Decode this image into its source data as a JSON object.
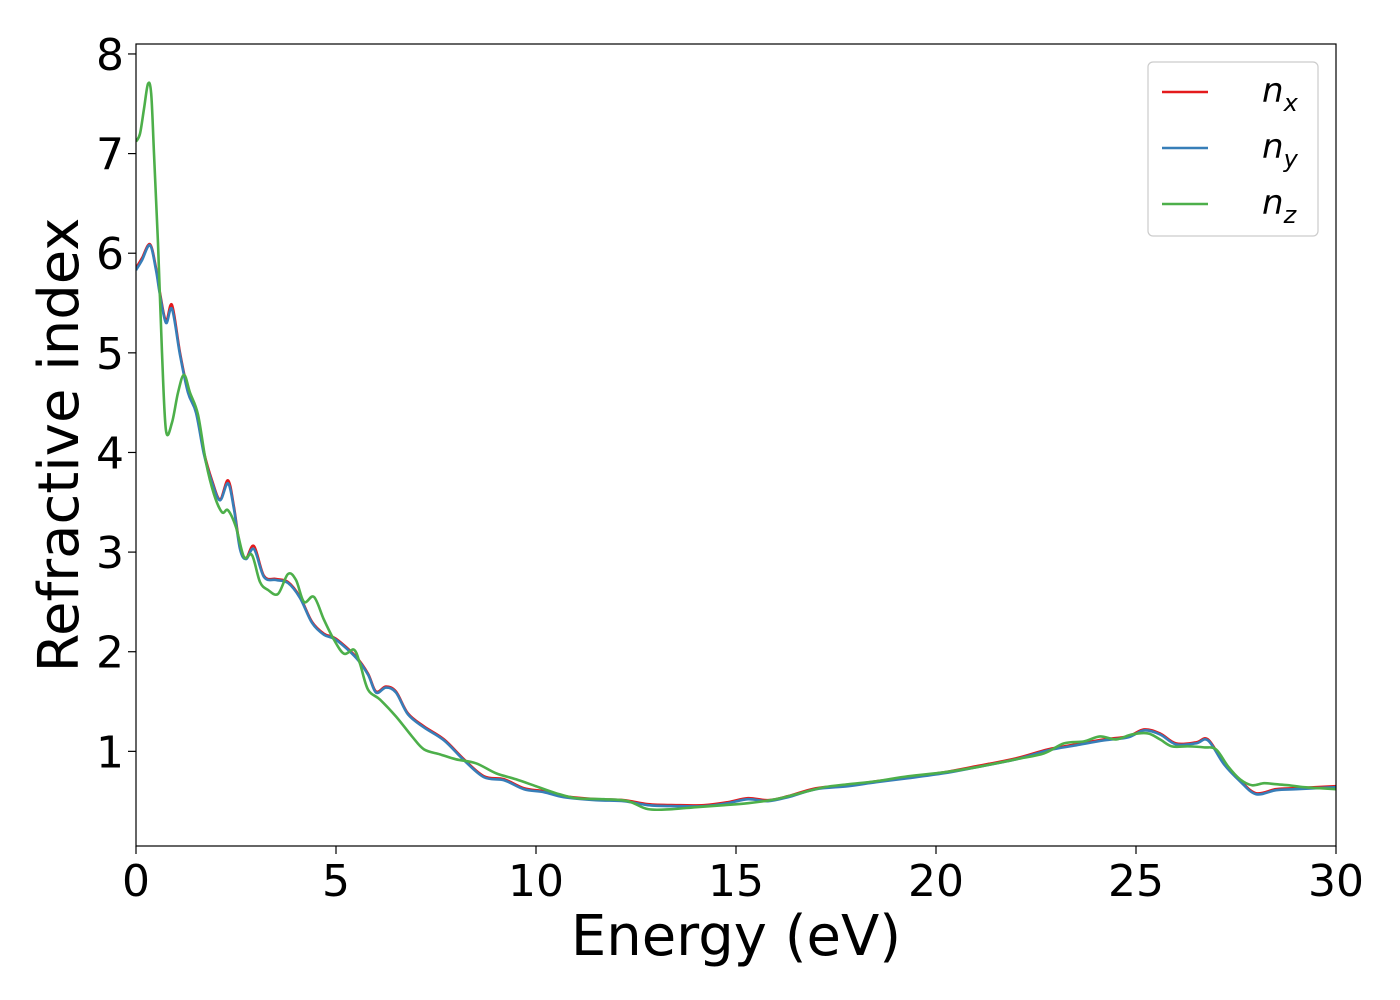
{
  "chart_data": {
    "type": "line",
    "title": "",
    "xlabel": "Energy (eV)",
    "ylabel": "Refractive index",
    "xlim": [
      0,
      30
    ],
    "ylim": [
      0.05,
      8.1
    ],
    "xticks": [
      0,
      5,
      10,
      15,
      20,
      25,
      30
    ],
    "yticks": [
      1,
      2,
      3,
      4,
      5,
      6,
      7,
      8
    ],
    "grid": false,
    "legend_position": "top-right",
    "series": [
      {
        "name": "n_x",
        "legend_base": "n",
        "legend_sub": "x",
        "color": "#e41a1c",
        "x": [
          0,
          0.15,
          0.35,
          0.5,
          0.6,
          0.75,
          0.9,
          1.1,
          1.3,
          1.5,
          1.7,
          1.9,
          2.1,
          2.3,
          2.45,
          2.6,
          2.75,
          2.95,
          3.2,
          3.5,
          3.8,
          4.1,
          4.4,
          4.7,
          5.0,
          5.5,
          5.8,
          6.0,
          6.25,
          6.5,
          6.8,
          7.2,
          7.7,
          8.2,
          8.7,
          9.2,
          9.7,
          10.2,
          10.7,
          11.5,
          12.2,
          12.8,
          13.5,
          14.2,
          14.8,
          15.3,
          15.8,
          16.3,
          17.0,
          17.8,
          18.5,
          19.3,
          20.2,
          21.0,
          22.0,
          22.8,
          23.5,
          24.2,
          24.8,
          25.2,
          25.6,
          26.0,
          26.5,
          26.8,
          27.2,
          27.6,
          28.0,
          28.5,
          29.0,
          29.5,
          30.0
        ],
        "y": [
          5.85,
          5.95,
          6.09,
          5.85,
          5.6,
          5.32,
          5.48,
          5.0,
          4.62,
          4.42,
          4.0,
          3.72,
          3.53,
          3.72,
          3.45,
          3.05,
          2.94,
          3.06,
          2.76,
          2.73,
          2.7,
          2.55,
          2.3,
          2.18,
          2.13,
          1.95,
          1.78,
          1.6,
          1.65,
          1.6,
          1.38,
          1.25,
          1.12,
          0.92,
          0.75,
          0.72,
          0.63,
          0.6,
          0.55,
          0.52,
          0.51,
          0.47,
          0.46,
          0.46,
          0.49,
          0.53,
          0.51,
          0.55,
          0.63,
          0.66,
          0.7,
          0.74,
          0.79,
          0.85,
          0.93,
          1.02,
          1.07,
          1.12,
          1.15,
          1.22,
          1.18,
          1.08,
          1.09,
          1.12,
          0.88,
          0.71,
          0.58,
          0.62,
          0.63,
          0.64,
          0.65
        ]
      },
      {
        "name": "n_y",
        "legend_base": "n",
        "legend_sub": "y",
        "color": "#377eb8",
        "x": [
          0,
          0.15,
          0.35,
          0.5,
          0.6,
          0.75,
          0.9,
          1.1,
          1.3,
          1.5,
          1.7,
          1.9,
          2.1,
          2.3,
          2.45,
          2.6,
          2.75,
          2.95,
          3.2,
          3.5,
          3.8,
          4.1,
          4.4,
          4.7,
          5.0,
          5.5,
          5.8,
          6.0,
          6.25,
          6.5,
          6.8,
          7.2,
          7.7,
          8.2,
          8.7,
          9.2,
          9.7,
          10.2,
          10.7,
          11.5,
          12.2,
          12.8,
          13.5,
          14.2,
          14.8,
          15.3,
          15.8,
          16.3,
          17.0,
          17.8,
          18.5,
          19.3,
          20.2,
          21.0,
          22.0,
          22.8,
          23.5,
          24.2,
          24.8,
          25.2,
          25.6,
          26.0,
          26.5,
          26.8,
          27.2,
          27.6,
          28.0,
          28.5,
          29.0,
          29.5,
          30.0
        ],
        "y": [
          5.83,
          5.93,
          6.08,
          5.83,
          5.58,
          5.3,
          5.44,
          4.98,
          4.6,
          4.4,
          3.98,
          3.7,
          3.52,
          3.69,
          3.43,
          3.03,
          2.93,
          3.03,
          2.75,
          2.72,
          2.69,
          2.54,
          2.29,
          2.17,
          2.12,
          1.94,
          1.77,
          1.59,
          1.64,
          1.59,
          1.37,
          1.24,
          1.11,
          0.91,
          0.74,
          0.71,
          0.62,
          0.59,
          0.54,
          0.51,
          0.5,
          0.46,
          0.45,
          0.45,
          0.48,
          0.52,
          0.5,
          0.54,
          0.62,
          0.65,
          0.69,
          0.73,
          0.78,
          0.84,
          0.92,
          1.01,
          1.06,
          1.11,
          1.14,
          1.21,
          1.17,
          1.07,
          1.08,
          1.11,
          0.87,
          0.7,
          0.57,
          0.61,
          0.62,
          0.63,
          0.64
        ]
      },
      {
        "name": "n_z",
        "legend_base": "n",
        "legend_sub": "z",
        "color": "#4daf4a",
        "x": [
          0,
          0.1,
          0.2,
          0.3,
          0.38,
          0.45,
          0.55,
          0.65,
          0.75,
          0.9,
          1.05,
          1.2,
          1.35,
          1.55,
          1.75,
          1.95,
          2.15,
          2.3,
          2.5,
          2.7,
          2.9,
          3.1,
          3.3,
          3.55,
          3.8,
          4.0,
          4.2,
          4.45,
          4.7,
          4.95,
          5.2,
          5.45,
          5.6,
          5.8,
          6.1,
          6.5,
          6.9,
          7.2,
          7.6,
          8.0,
          8.5,
          9.0,
          9.5,
          10.0,
          10.5,
          11.0,
          11.7,
          12.3,
          12.8,
          13.4,
          14.0,
          14.7,
          15.3,
          16.0,
          16.6,
          17.2,
          17.8,
          18.5,
          19.3,
          20.2,
          21.0,
          22.0,
          22.7,
          23.2,
          23.7,
          24.1,
          24.5,
          24.9,
          25.3,
          25.6,
          25.9,
          26.3,
          26.7,
          27.0,
          27.3,
          27.6,
          27.9,
          28.2,
          28.5,
          28.8,
          29.2,
          29.6,
          30.0
        ],
        "y": [
          7.12,
          7.2,
          7.45,
          7.7,
          7.6,
          7.0,
          6.1,
          5.0,
          4.22,
          4.3,
          4.6,
          4.78,
          4.6,
          4.38,
          3.9,
          3.58,
          3.4,
          3.42,
          3.25,
          2.95,
          2.97,
          2.7,
          2.62,
          2.58,
          2.78,
          2.72,
          2.5,
          2.55,
          2.32,
          2.12,
          1.98,
          2.02,
          1.88,
          1.62,
          1.52,
          1.35,
          1.15,
          1.02,
          0.97,
          0.92,
          0.88,
          0.78,
          0.72,
          0.65,
          0.58,
          0.53,
          0.52,
          0.5,
          0.42,
          0.42,
          0.44,
          0.46,
          0.48,
          0.52,
          0.58,
          0.64,
          0.67,
          0.7,
          0.75,
          0.79,
          0.84,
          0.92,
          0.98,
          1.08,
          1.1,
          1.15,
          1.12,
          1.17,
          1.18,
          1.12,
          1.05,
          1.05,
          1.04,
          1.02,
          0.85,
          0.72,
          0.66,
          0.68,
          0.67,
          0.66,
          0.64,
          0.63,
          0.62
        ]
      }
    ]
  }
}
